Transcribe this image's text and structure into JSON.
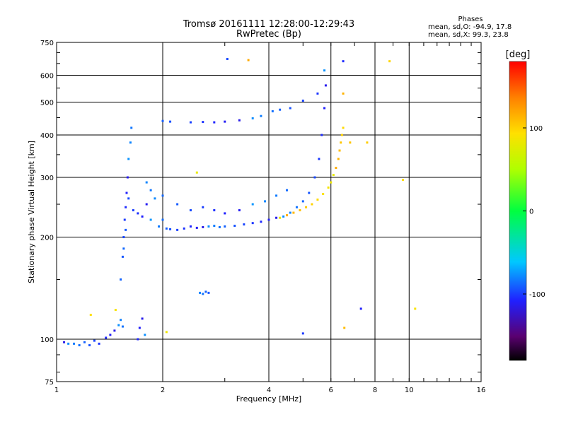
{
  "header": {
    "title": "Tromsø 20161111 12:28:00-12:29:43",
    "subtitle": "RwPretec (Bp)"
  },
  "phase_stats": {
    "heading": "Phases",
    "line_o": "mean, sd,O: -94.9, 17.8",
    "line_x": "mean, sd,X:  99.3, 23.8"
  },
  "colorbar": {
    "label": "[deg]",
    "ticks": [
      "100",
      "0",
      "-100"
    ],
    "tick_values": [
      100,
      0,
      -100
    ],
    "range": [
      -180,
      180
    ]
  },
  "chart_data": {
    "type": "scatter",
    "title": "Tromsø 20161111 12:28:00-12:29:43",
    "subtitle": "RwPretec (Bp)",
    "xlabel": "Frequency [MHz]",
    "ylabel": "Stationary phase Virtual Height [km]",
    "x_scale": "log",
    "y_scale": "log",
    "xlim": [
      1,
      16
    ],
    "ylim": [
      75,
      750
    ],
    "x_ticks": [
      1,
      2,
      4,
      6,
      8,
      10,
      16
    ],
    "x_tick_labels": [
      "1",
      "2",
      "4",
      "6",
      "8",
      "10",
      "16"
    ],
    "y_ticks": [
      75,
      100,
      200,
      300,
      400,
      500,
      600,
      750
    ],
    "y_tick_labels": [
      "75",
      "100",
      "200",
      "300",
      "400",
      "500",
      "600",
      "750"
    ],
    "grid": true,
    "series": [
      {
        "polarization": "O",
        "points": [
          [
            1.05,
            98
          ],
          [
            1.08,
            97
          ],
          [
            1.12,
            97
          ],
          [
            1.16,
            96
          ],
          [
            1.2,
            98
          ],
          [
            1.24,
            96
          ],
          [
            1.28,
            99
          ],
          [
            1.32,
            97
          ],
          [
            1.38,
            101
          ],
          [
            1.42,
            103
          ],
          [
            1.46,
            106
          ],
          [
            1.5,
            110
          ],
          [
            1.52,
            114
          ],
          [
            1.54,
            109
          ],
          [
            1.52,
            150
          ],
          [
            1.54,
            175
          ],
          [
            1.55,
            200
          ],
          [
            1.56,
            225
          ],
          [
            1.57,
            245
          ],
          [
            1.58,
            270
          ],
          [
            1.59,
            300
          ],
          [
            1.6,
            340
          ],
          [
            1.62,
            380
          ],
          [
            1.63,
            420
          ],
          [
            1.55,
            185
          ],
          [
            1.57,
            210
          ],
          [
            1.6,
            260
          ],
          [
            1.65,
            240
          ],
          [
            1.7,
            235
          ],
          [
            1.75,
            230
          ],
          [
            1.8,
            250
          ],
          [
            1.85,
            225
          ],
          [
            1.9,
            260
          ],
          [
            1.95,
            215
          ],
          [
            2.0,
            225
          ],
          [
            2.05,
            212
          ],
          [
            2.1,
            211
          ],
          [
            2.2,
            210
          ],
          [
            2.3,
            212
          ],
          [
            2.4,
            215
          ],
          [
            2.5,
            213
          ],
          [
            2.6,
            214
          ],
          [
            2.7,
            215
          ],
          [
            2.8,
            216
          ],
          [
            2.9,
            214
          ],
          [
            3.0,
            215
          ],
          [
            3.2,
            216
          ],
          [
            3.4,
            218
          ],
          [
            3.6,
            220
          ],
          [
            3.8,
            222
          ],
          [
            4.0,
            225
          ],
          [
            4.2,
            228
          ],
          [
            4.4,
            230
          ],
          [
            4.6,
            236
          ],
          [
            4.8,
            245
          ],
          [
            5.0,
            255
          ],
          [
            5.2,
            270
          ],
          [
            5.4,
            300
          ],
          [
            5.55,
            340
          ],
          [
            5.65,
            400
          ],
          [
            5.75,
            480
          ],
          [
            5.8,
            560
          ],
          [
            5.75,
            620
          ],
          [
            1.8,
            290
          ],
          [
            1.85,
            275
          ],
          [
            2.0,
            265
          ],
          [
            2.2,
            250
          ],
          [
            2.4,
            240
          ],
          [
            2.6,
            245
          ],
          [
            2.8,
            240
          ],
          [
            3.0,
            235
          ],
          [
            3.3,
            240
          ],
          [
            3.6,
            250
          ],
          [
            3.9,
            255
          ],
          [
            4.2,
            265
          ],
          [
            4.5,
            275
          ],
          [
            2.0,
            440
          ],
          [
            2.1,
            438
          ],
          [
            2.4,
            436
          ],
          [
            2.6,
            437
          ],
          [
            2.8,
            436
          ],
          [
            3.0,
            438
          ],
          [
            3.3,
            442
          ],
          [
            3.6,
            448
          ],
          [
            3.8,
            455
          ],
          [
            4.1,
            470
          ],
          [
            4.3,
            475
          ],
          [
            4.6,
            480
          ],
          [
            5.0,
            505
          ],
          [
            5.5,
            530
          ],
          [
            1.7,
            100
          ],
          [
            1.72,
            108
          ],
          [
            1.75,
            115
          ],
          [
            1.78,
            103
          ],
          [
            2.55,
            137
          ],
          [
            2.6,
            136
          ],
          [
            2.65,
            138
          ],
          [
            2.7,
            137
          ],
          [
            3.05,
            670
          ],
          [
            5.0,
            104
          ],
          [
            6.5,
            660
          ],
          [
            7.3,
            123
          ]
        ]
      },
      {
        "polarization": "X",
        "points": [
          [
            4.3,
            228
          ],
          [
            4.5,
            232
          ],
          [
            4.7,
            236
          ],
          [
            4.9,
            240
          ],
          [
            5.1,
            245
          ],
          [
            5.3,
            250
          ],
          [
            5.5,
            258
          ],
          [
            5.7,
            268
          ],
          [
            5.9,
            280
          ],
          [
            6.0,
            290
          ],
          [
            6.1,
            305
          ],
          [
            6.2,
            320
          ],
          [
            6.3,
            340
          ],
          [
            6.35,
            360
          ],
          [
            6.4,
            380
          ],
          [
            6.45,
            400
          ],
          [
            6.5,
            420
          ],
          [
            1.25,
            118
          ],
          [
            1.47,
            122
          ],
          [
            2.05,
            105
          ],
          [
            2.5,
            310
          ],
          [
            3.5,
            665
          ],
          [
            6.5,
            530
          ],
          [
            6.55,
            108
          ],
          [
            6.8,
            380
          ],
          [
            7.6,
            380
          ],
          [
            8.8,
            660
          ],
          [
            9.6,
            295
          ],
          [
            10.4,
            123
          ]
        ]
      }
    ]
  }
}
